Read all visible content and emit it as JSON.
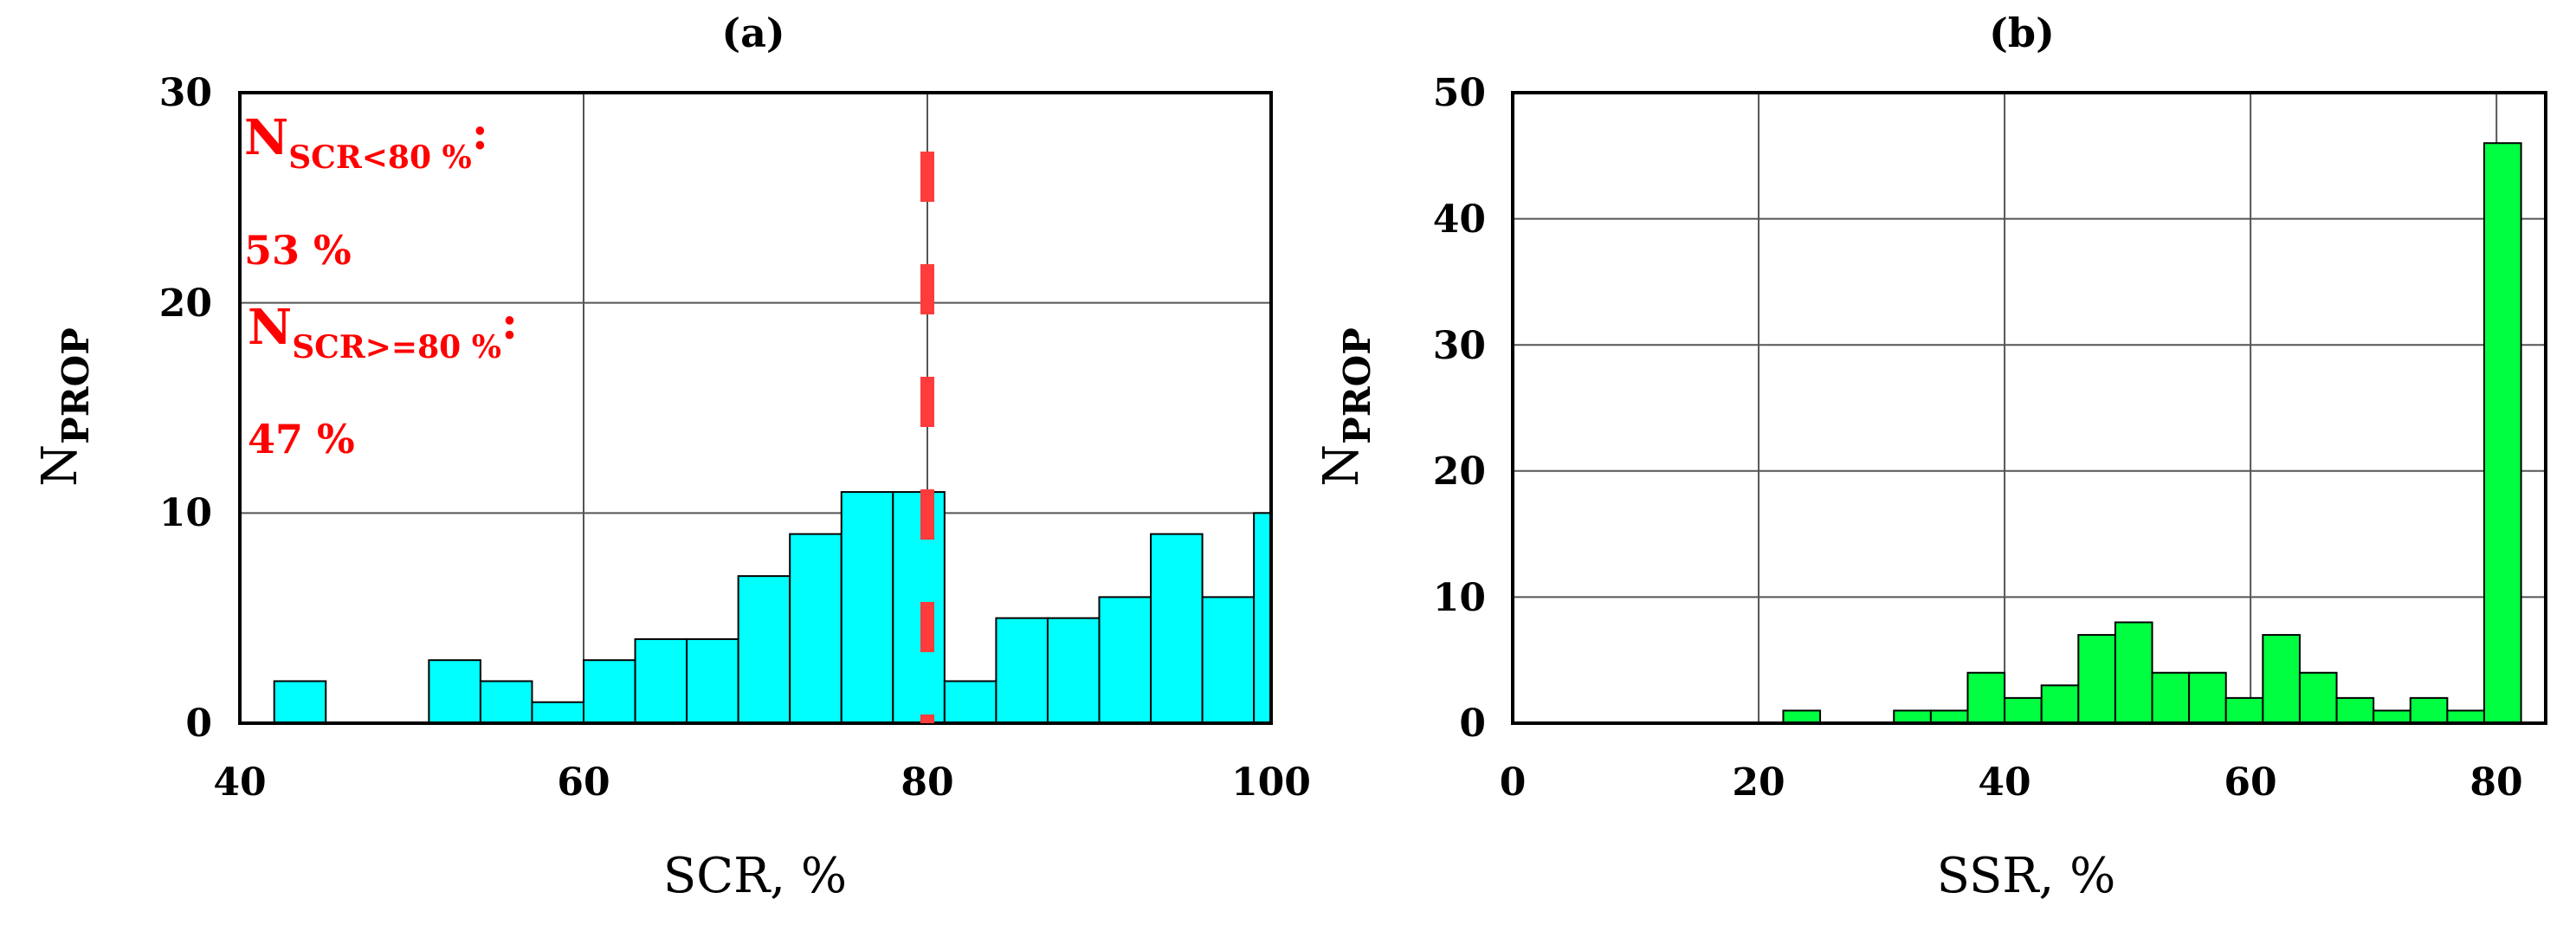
{
  "chart_data": [
    {
      "type": "bar",
      "title": "(a)",
      "xlabel": "SCR, %",
      "ylabel": {
        "main": "N",
        "sub": "PROP"
      },
      "xlim": [
        40,
        100
      ],
      "ylim": [
        0,
        30
      ],
      "xticks": [
        "40",
        "60",
        "80",
        "100"
      ],
      "yticks": [
        "0",
        "10",
        "20",
        "30"
      ],
      "grid": true,
      "bar_color": "#00ffff",
      "bin_width": 3,
      "bins": [
        {
          "x0": 42,
          "value": 2
        },
        {
          "x0": 45,
          "value": 0
        },
        {
          "x0": 48,
          "value": 0
        },
        {
          "x0": 51,
          "value": 3
        },
        {
          "x0": 54,
          "value": 2
        },
        {
          "x0": 57,
          "value": 1
        },
        {
          "x0": 60,
          "value": 3
        },
        {
          "x0": 63,
          "value": 4
        },
        {
          "x0": 66,
          "value": 4
        },
        {
          "x0": 69,
          "value": 7
        },
        {
          "x0": 72,
          "value": 9
        },
        {
          "x0": 75,
          "value": 11
        },
        {
          "x0": 78,
          "value": 11
        },
        {
          "x0": 81,
          "value": 2
        },
        {
          "x0": 84,
          "value": 5
        },
        {
          "x0": 87,
          "value": 5
        },
        {
          "x0": 90,
          "value": 6
        },
        {
          "x0": 93,
          "value": 9
        },
        {
          "x0": 96,
          "value": 6
        },
        {
          "x0": 99,
          "value": 10
        }
      ],
      "threshold": {
        "x": 80,
        "color": "#ff3b3b",
        "style": "dashed"
      },
      "annotations": [
        {
          "main": "N",
          "sub": "SCR<80 %",
          "suffix": ":",
          "value": "53 %"
        },
        {
          "main": "N",
          "sub": "SCR>=80 %",
          "suffix": ":",
          "value": "47 %"
        }
      ],
      "annotation_color": "#ff0000"
    },
    {
      "type": "bar",
      "title": "(b)",
      "xlabel": "SSR, %",
      "ylabel": {
        "main": "N",
        "sub": "PROP"
      },
      "xlim": [
        0,
        84
      ],
      "ylim": [
        0,
        50
      ],
      "xticks": [
        "0",
        "20",
        "40",
        "60",
        "80"
      ],
      "yticks": [
        "0",
        "10",
        "20",
        "30",
        "40",
        "50"
      ],
      "grid": true,
      "bar_color": "#00ff40",
      "bin_width": 3,
      "bins": [
        {
          "x0": 22,
          "value": 1
        },
        {
          "x0": 25,
          "value": 0
        },
        {
          "x0": 28,
          "value": 0
        },
        {
          "x0": 31,
          "value": 1
        },
        {
          "x0": 34,
          "value": 1
        },
        {
          "x0": 37,
          "value": 4
        },
        {
          "x0": 40,
          "value": 2
        },
        {
          "x0": 43,
          "value": 3
        },
        {
          "x0": 46,
          "value": 7
        },
        {
          "x0": 49,
          "value": 8
        },
        {
          "x0": 52,
          "value": 4
        },
        {
          "x0": 55,
          "value": 4
        },
        {
          "x0": 58,
          "value": 2
        },
        {
          "x0": 61,
          "value": 7
        },
        {
          "x0": 64,
          "value": 4
        },
        {
          "x0": 67,
          "value": 2
        },
        {
          "x0": 70,
          "value": 1
        },
        {
          "x0": 73,
          "value": 2
        },
        {
          "x0": 76,
          "value": 1
        },
        {
          "x0": 79,
          "value": 46
        }
      ]
    }
  ]
}
